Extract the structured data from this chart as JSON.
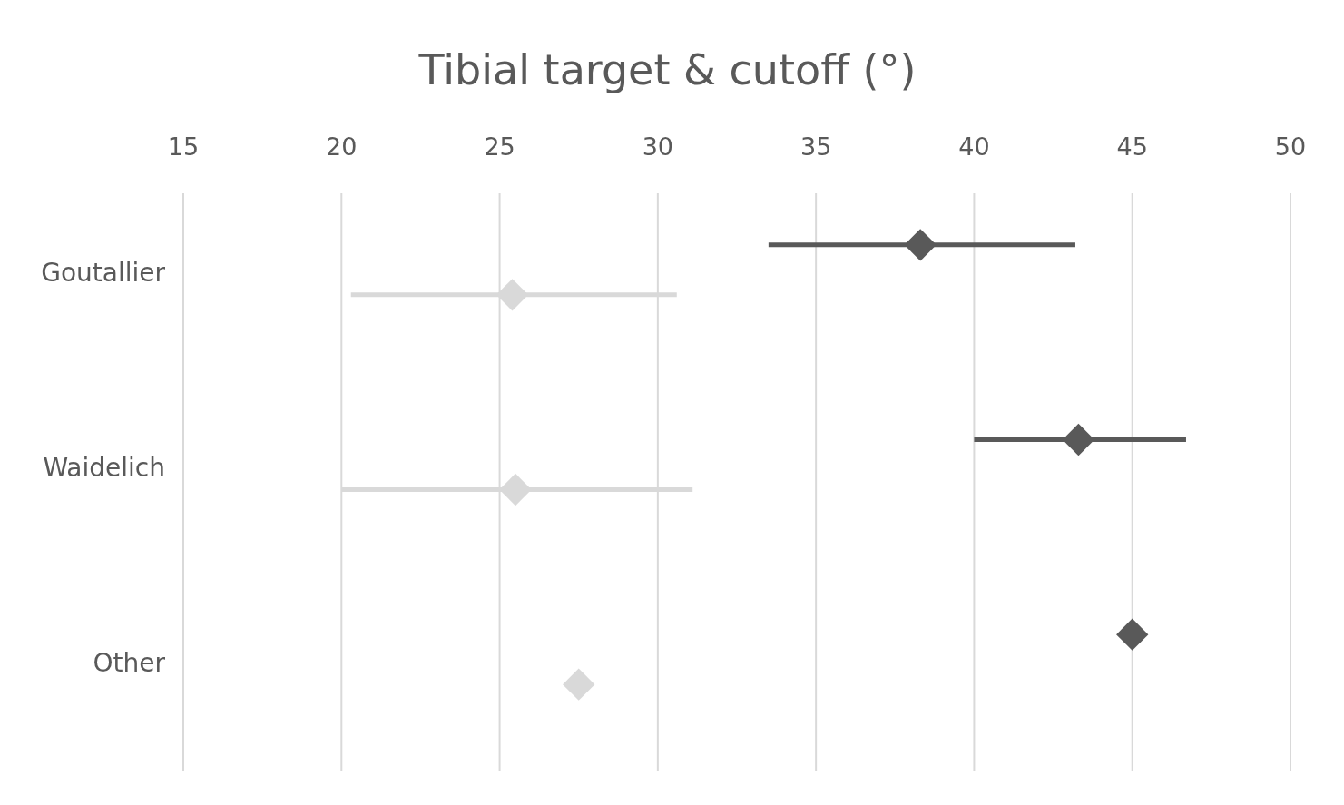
{
  "chart_data": {
    "type": "scatter",
    "title": "Tibial target & cutoff (°)",
    "orientation": "horizontal",
    "categories": [
      "Goutallier",
      "Waidelich",
      "Other"
    ],
    "series": [
      {
        "color": "#595959",
        "values": [
          38.3,
          43.3,
          45.0
        ],
        "errors": [
          [
            33.5,
            43.2
          ],
          [
            40.0,
            46.7
          ],
          null
        ]
      },
      {
        "color": "#d9d9d9",
        "values": [
          25.4,
          25.5,
          27.5
        ],
        "errors": [
          [
            20.3,
            30.6
          ],
          [
            20.0,
            31.1
          ],
          null
        ]
      }
    ],
    "xlim": [
      15,
      50
    ],
    "xticks": [
      15,
      20,
      25,
      30,
      35,
      40,
      45,
      50
    ],
    "grid": "x",
    "marker": "diamond"
  }
}
